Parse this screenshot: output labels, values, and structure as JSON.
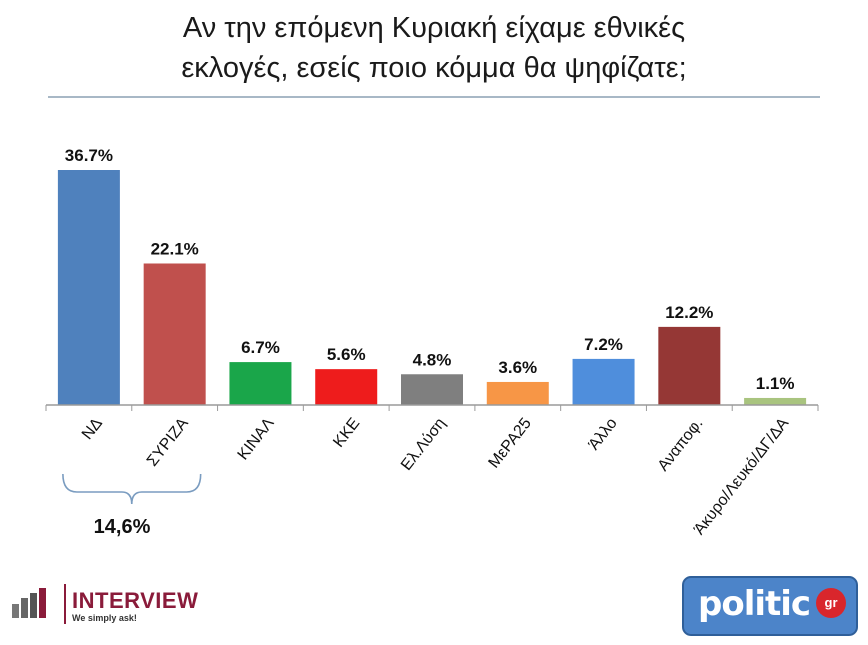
{
  "title_line1": "Αν την επόμενη Κυριακή είχαμε εθνικές",
  "title_line2": "εκλογές, εσείς ποιο κόμμα θα ψηφίζατε;",
  "chart_data": {
    "type": "bar",
    "title": "Αν την επόμενη Κυριακή είχαμε εθνικές εκλογές, εσείς ποιο κόμμα θα ψηφίζατε;",
    "categories": [
      "ΝΔ",
      "ΣΥΡΙΖΑ",
      "ΚΙΝΑΛ",
      "ΚΚΕ",
      "Ελ.Λύση",
      "ΜεΡΑ25",
      "Άλλο",
      "Αναποφ.",
      "Άκυρο/Λευκό/ΔΓ/ΔΑ"
    ],
    "values": [
      36.7,
      22.1,
      6.7,
      5.6,
      4.8,
      3.6,
      7.2,
      12.2,
      1.1
    ],
    "value_labels": [
      "36.7%",
      "22.1%",
      "6.7%",
      "5.6%",
      "4.8%",
      "3.6%",
      "7.2%",
      "12.2%",
      "1.1%"
    ],
    "colors": [
      "#4f81bd",
      "#c0504d",
      "#1aa64a",
      "#ee1c1c",
      "#7f7f7f",
      "#f79646",
      "#4f8edc",
      "#953735",
      "#a9c47f"
    ],
    "xlabel": "",
    "ylabel": "",
    "ylim": [
      0,
      40
    ],
    "grid": false,
    "legend": "none",
    "annotation": {
      "text": "14,6%",
      "spans": [
        "ΝΔ",
        "ΣΥΡΙΖΑ"
      ]
    }
  },
  "logos": {
    "left_name": "INTERVIEW",
    "left_tagline": "We simply ask!",
    "right_name": "politic",
    "right_suffix": "gr"
  }
}
